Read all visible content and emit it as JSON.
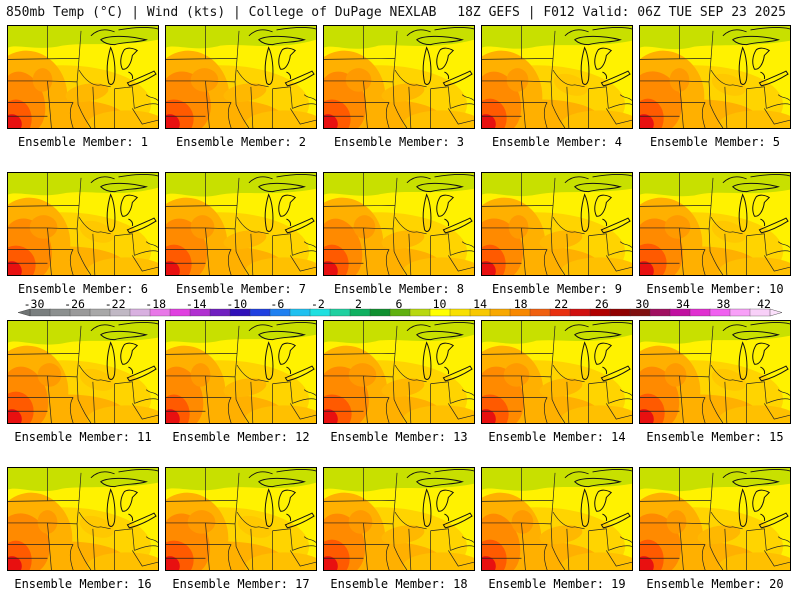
{
  "header": {
    "left_title": "850mb Temp (°C) | Wind (kts) | College of DuPage NEXLAB",
    "right_title": "18Z GEFS | F012 Valid: 06Z TUE SEP 23 2025"
  },
  "colorbar": {
    "labels": [
      "-30",
      "-26",
      "-22",
      "-18",
      "-14",
      "-10",
      "-6",
      "-2",
      "2",
      "6",
      "10",
      "14",
      "18",
      "22",
      "26",
      "30",
      "34",
      "38",
      "42"
    ],
    "colors": [
      "#7a7f7f",
      "#8c908f",
      "#9a9a9a",
      "#a8a8a8",
      "#c0b8c4",
      "#d8b0e0",
      "#e878e8",
      "#e040e0",
      "#b030d0",
      "#7020c0",
      "#3010b8",
      "#2040e0",
      "#2080f0",
      "#20c0f0",
      "#20e0e0",
      "#20d0a0",
      "#10b060",
      "#109030",
      "#60b010",
      "#b8d810",
      "#ffff00",
      "#f8e000",
      "#f8c800",
      "#f8a800",
      "#f88800",
      "#f06010",
      "#e83010",
      "#d01010",
      "#b00000",
      "#900000",
      "#801010",
      "#a01060",
      "#c010a0",
      "#e030d0",
      "#f060f0",
      "#f8a0f8",
      "#f8d0f8"
    ]
  },
  "panels": [
    {
      "label": "Ensemble Member: 1"
    },
    {
      "label": "Ensemble Member: 2"
    },
    {
      "label": "Ensemble Member: 3"
    },
    {
      "label": "Ensemble Member: 4"
    },
    {
      "label": "Ensemble Member: 5"
    },
    {
      "label": "Ensemble Member: 6"
    },
    {
      "label": "Ensemble Member: 7"
    },
    {
      "label": "Ensemble Member: 8"
    },
    {
      "label": "Ensemble Member: 9"
    },
    {
      "label": "Ensemble Member: 10"
    },
    {
      "label": "Ensemble Member: 11"
    },
    {
      "label": "Ensemble Member: 12"
    },
    {
      "label": "Ensemble Member: 13"
    },
    {
      "label": "Ensemble Member: 14"
    },
    {
      "label": "Ensemble Member: 15"
    },
    {
      "label": "Ensemble Member: 16"
    },
    {
      "label": "Ensemble Member: 17"
    },
    {
      "label": "Ensemble Member: 18"
    },
    {
      "label": "Ensemble Member: 19"
    },
    {
      "label": "Ensemble Member: 20"
    }
  ]
}
